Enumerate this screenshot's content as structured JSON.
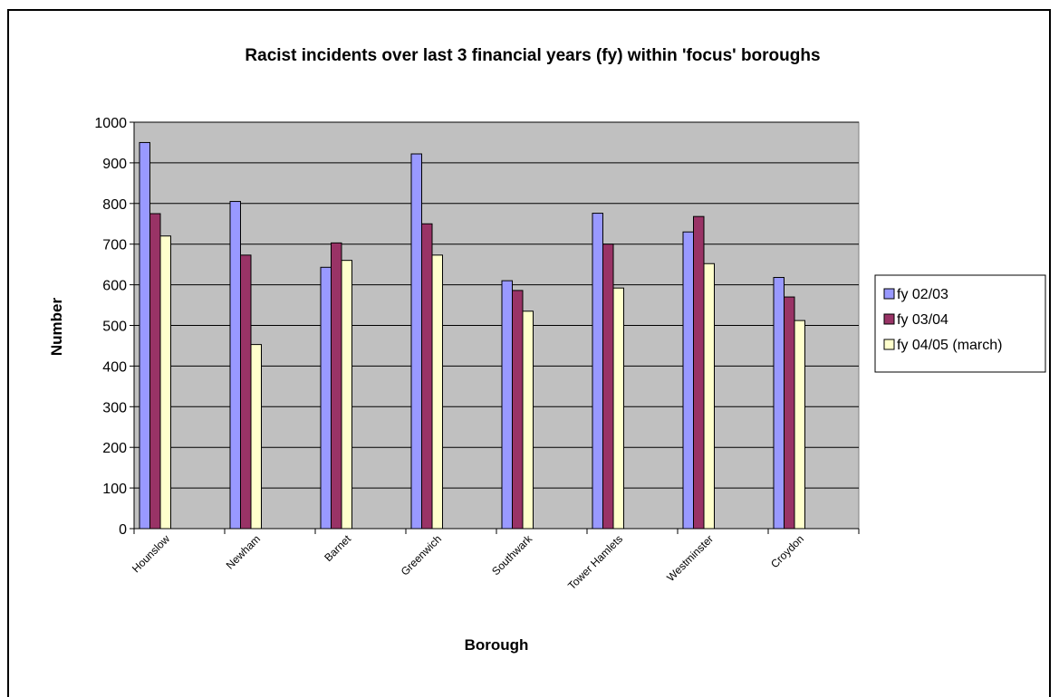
{
  "chart_data": {
    "type": "bar",
    "title": "Racist incidents over last 3 financial  years (fy) within 'focus' boroughs",
    "xlabel": "Borough",
    "ylabel": "Number",
    "ylim": [
      0,
      1000
    ],
    "ytick_step": 100,
    "grid": true,
    "legend_position": "right",
    "plot_background": "#c0c0c0",
    "categories": [
      "Hounslow",
      "Newham",
      "Barnet",
      "Greenwich",
      "Southwark",
      "Tower Hamlets",
      "Westminster",
      "Croydon"
    ],
    "series": [
      {
        "name": "fy 02/03",
        "color": "#9999ff",
        "values": [
          950,
          805,
          643,
          922,
          610,
          776,
          730,
          618
        ]
      },
      {
        "name": "fy 03/04",
        "color": "#993366",
        "values": [
          775,
          673,
          703,
          750,
          586,
          700,
          768,
          570
        ]
      },
      {
        "name": "fy 04/05 (march)",
        "color": "#ffffcc",
        "values": [
          720,
          453,
          660,
          673,
          535,
          592,
          652,
          512
        ]
      }
    ]
  }
}
